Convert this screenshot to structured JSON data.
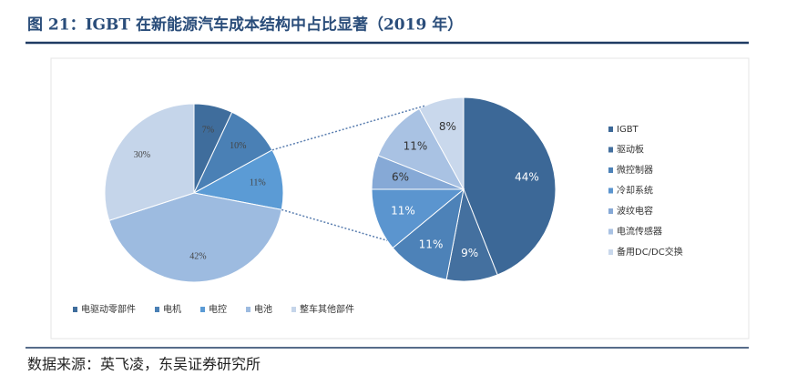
{
  "title": "图 21：IGBT 在新能源汽车成本结构中占比显著（2019 年）",
  "source": "数据来源：英飞凌，东吴证券研究所",
  "chart_data": [
    {
      "type": "pie",
      "categories": [
        "电驱动零部件",
        "电机",
        "电控",
        "电池",
        "整车其他部件"
      ],
      "values": [
        7,
        10,
        11,
        42,
        30
      ],
      "value_labels": [
        "7%",
        "10%",
        "11%",
        "42%",
        "30%"
      ],
      "colors": [
        "#3f6d9c",
        "#4a80b5",
        "#5b9bd5",
        "#9dbbe0",
        "#c5d5ea"
      ]
    },
    {
      "type": "pie",
      "categories": [
        "IGBT",
        "驱动板",
        "微控制器",
        "冷却系统",
        "波纹电容",
        "电流传感器",
        "备用DC/DC交换"
      ],
      "values": [
        44,
        9,
        11,
        11,
        6,
        11,
        8
      ],
      "value_labels": [
        "44%",
        "9%",
        "11%",
        "11%",
        "6%",
        "11%",
        "8%"
      ],
      "colors": [
        "#3c6897",
        "#44709f",
        "#4d82b8",
        "#5b95cf",
        "#86a9d6",
        "#a9c2e3",
        "#c9d8ec"
      ]
    }
  ]
}
